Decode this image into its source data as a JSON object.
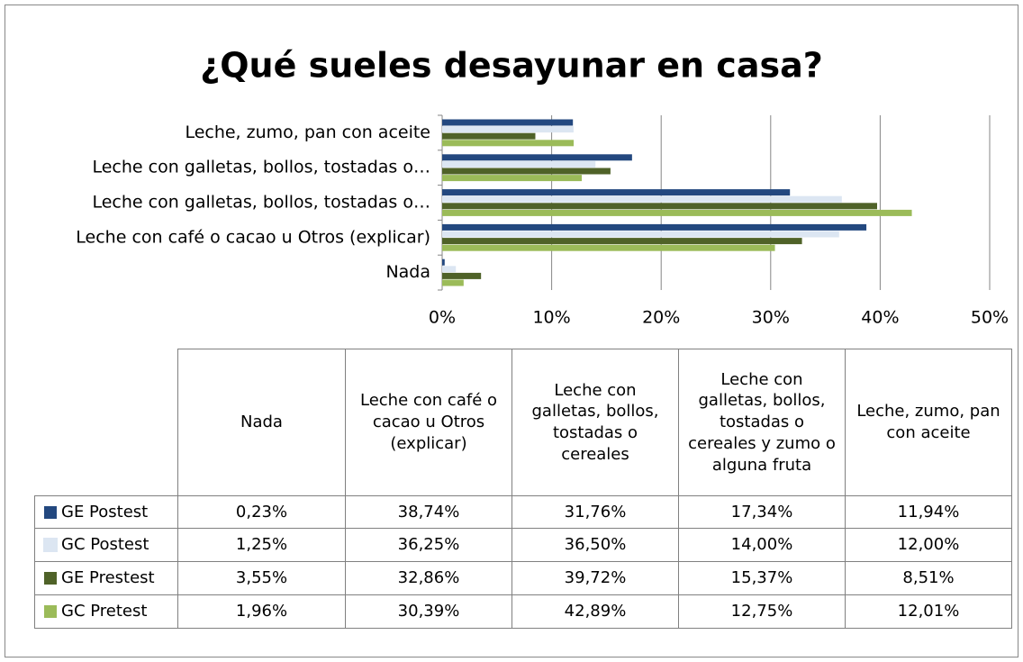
{
  "chart_data": {
    "type": "hbar",
    "title": "¿Qué sueles desayunar en casa?",
    "categories": [
      "Nada",
      "Leche con café o cacao u Otros (explicar)",
      "Leche con galletas, bollos, tostadas o cereales",
      "Leche con galletas, bollos, tostadas o cereales y zumo o alguna fruta",
      "Leche, zumo, pan con aceite"
    ],
    "category_labels": [
      "Nada",
      "Leche con café o cacao u Otros (explicar)",
      "Leche con galletas, bollos, tostadas o…",
      "Leche con galletas, bollos, tostadas o…",
      "Leche, zumo, pan con aceite"
    ],
    "series": [
      {
        "name": "GE Postest",
        "color": "#23487f",
        "values": [
          0.23,
          38.74,
          31.76,
          17.34,
          11.94
        ],
        "value_labels": [
          "0,23%",
          "38,74%",
          "31,76%",
          "17,34%",
          "11,94%"
        ]
      },
      {
        "name": "GC Postest",
        "color": "#dce6f2",
        "values": [
          1.25,
          36.25,
          36.5,
          14.0,
          12.0
        ],
        "value_labels": [
          "1,25%",
          "36,25%",
          "36,50%",
          "14,00%",
          "12,00%"
        ]
      },
      {
        "name": "GE Prestest",
        "color": "#4f6228",
        "values": [
          3.55,
          32.86,
          39.72,
          15.37,
          8.51
        ],
        "value_labels": [
          "3,55%",
          "32,86%",
          "39,72%",
          "15,37%",
          "8,51%"
        ]
      },
      {
        "name": "GC Pretest",
        "color": "#9bbb59",
        "values": [
          1.96,
          30.39,
          42.89,
          12.75,
          12.01
        ],
        "value_labels": [
          "1,96%",
          "30,39%",
          "42,89%",
          "12,75%",
          "12,01%"
        ]
      }
    ],
    "xlim": [
      0,
      50
    ],
    "xticks": [
      {
        "value": 0,
        "label": "0%"
      },
      {
        "value": 10,
        "label": "10%"
      },
      {
        "value": 20,
        "label": "20%"
      },
      {
        "value": 30,
        "label": "30%"
      },
      {
        "value": 40,
        "label": "40%"
      },
      {
        "value": 50,
        "label": "50%"
      }
    ],
    "grid": true
  }
}
